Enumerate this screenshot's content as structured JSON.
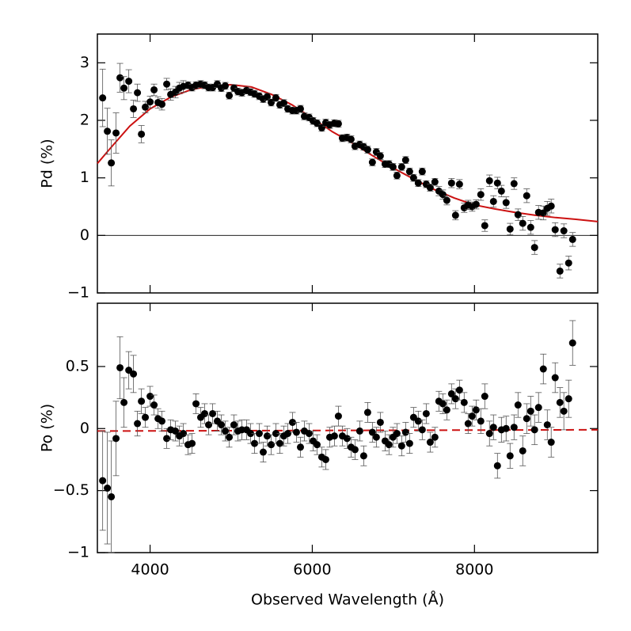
{
  "chart_data": [
    {
      "type": "scatter",
      "ylabel": "Pd (%)",
      "xlim": [
        3350,
        9520
      ],
      "ylim": [
        -1,
        3.5
      ],
      "xticks": [
        4000,
        6000,
        8000
      ],
      "yticks": [
        {
          "value": -1,
          "label": "−1"
        },
        0,
        1,
        2,
        3
      ],
      "hline": 0,
      "x": [
        3415,
        3473,
        3522,
        3580,
        3629,
        3678,
        3737,
        3795,
        3844,
        3893,
        3941,
        4000,
        4049,
        4098,
        4146,
        4205,
        4254,
        4312,
        4361,
        4410,
        4468,
        4517,
        4566,
        4624,
        4673,
        4722,
        4771,
        4829,
        4878,
        4927,
        4976,
        5034,
        5083,
        5132,
        5190,
        5239,
        5288,
        5346,
        5395,
        5444,
        5493,
        5551,
        5600,
        5649,
        5698,
        5756,
        5805,
        5854,
        5902,
        5961,
        6010,
        6059,
        6117,
        6166,
        6215,
        6273,
        6322,
        6371,
        6429,
        6478,
        6527,
        6585,
        6634,
        6683,
        6741,
        6790,
        6839,
        6898,
        6946,
        6995,
        7044,
        7102,
        7151,
        7200,
        7249,
        7307,
        7356,
        7405,
        7454,
        7512,
        7561,
        7610,
        7659,
        7717,
        7766,
        7815,
        7873,
        7922,
        7971,
        8020,
        8078,
        8127,
        8185,
        8234,
        8283,
        8332,
        8390,
        8439,
        8488,
        8537,
        8595,
        8644,
        8693,
        8741,
        8790,
        8849,
        8898,
        8946,
        8995,
        9054,
        9102,
        9161,
        9210
      ],
      "series": [
        {
          "color": "#000000",
          "values": [
            2.39,
            1.81,
            1.26,
            1.78,
            2.74,
            2.56,
            2.68,
            2.2,
            2.48,
            1.76,
            2.23,
            2.32,
            2.53,
            2.31,
            2.28,
            2.63,
            2.45,
            2.49,
            2.56,
            2.59,
            2.61,
            2.57,
            2.61,
            2.63,
            2.61,
            2.57,
            2.57,
            2.63,
            2.56,
            2.6,
            2.43,
            2.56,
            2.5,
            2.48,
            2.52,
            2.49,
            2.46,
            2.42,
            2.37,
            2.41,
            2.31,
            2.39,
            2.27,
            2.3,
            2.2,
            2.17,
            2.17,
            2.2,
            2.07,
            2.05,
            1.99,
            1.95,
            1.87,
            1.96,
            1.92,
            1.95,
            1.94,
            1.69,
            1.7,
            1.67,
            1.55,
            1.58,
            1.54,
            1.49,
            1.27,
            1.45,
            1.38,
            1.24,
            1.24,
            1.19,
            1.04,
            1.19,
            1.31,
            1.11,
            1.0,
            0.91,
            1.11,
            0.89,
            0.83,
            0.93,
            0.77,
            0.71,
            0.61,
            0.91,
            0.35,
            0.89,
            0.48,
            0.53,
            0.5,
            0.54,
            0.71,
            0.17,
            0.95,
            0.59,
            0.91,
            0.77,
            0.57,
            0.11,
            0.9,
            0.36,
            0.21,
            0.69,
            0.14,
            -0.21,
            0.4,
            0.39,
            0.47,
            0.51,
            0.1,
            -0.62,
            0.08,
            -0.48,
            -0.07
          ],
          "errors": [
            0.5,
            0.4,
            0.4,
            0.35,
            0.25,
            0.2,
            0.2,
            0.15,
            0.15,
            0.15,
            0.1,
            0.1,
            0.1,
            0.1,
            0.1,
            0.1,
            0.1,
            0.1,
            0.1,
            0.1,
            0.06,
            0.06,
            0.06,
            0.06,
            0.06,
            0.06,
            0.06,
            0.06,
            0.06,
            0.06,
            0.06,
            0.06,
            0.06,
            0.06,
            0.06,
            0.06,
            0.06,
            0.06,
            0.06,
            0.06,
            0.06,
            0.06,
            0.06,
            0.06,
            0.06,
            0.06,
            0.06,
            0.06,
            0.06,
            0.06,
            0.06,
            0.06,
            0.06,
            0.06,
            0.06,
            0.06,
            0.06,
            0.06,
            0.06,
            0.06,
            0.06,
            0.06,
            0.06,
            0.06,
            0.06,
            0.06,
            0.06,
            0.06,
            0.06,
            0.06,
            0.06,
            0.06,
            0.06,
            0.06,
            0.06,
            0.06,
            0.06,
            0.06,
            0.06,
            0.06,
            0.08,
            0.08,
            0.08,
            0.08,
            0.08,
            0.08,
            0.08,
            0.08,
            0.08,
            0.08,
            0.1,
            0.1,
            0.1,
            0.1,
            0.1,
            0.1,
            0.1,
            0.1,
            0.1,
            0.1,
            0.12,
            0.12,
            0.12,
            0.12,
            0.12,
            0.12,
            0.12,
            0.12,
            0.12,
            0.12,
            0.12,
            0.12,
            0.12
          ]
        }
      ],
      "fit": {
        "color": "#cc1111",
        "dashed": false,
        "x": [
          3350,
          3500,
          3750,
          4000,
          4250,
          4500,
          4750,
          5000,
          5250,
          5500,
          5750,
          6000,
          6250,
          6500,
          6750,
          7000,
          7250,
          7500,
          7750,
          8000,
          8250,
          8500,
          8750,
          9000,
          9250,
          9520
        ],
        "values": [
          1.25,
          1.5,
          1.9,
          2.2,
          2.4,
          2.53,
          2.6,
          2.62,
          2.58,
          2.45,
          2.27,
          2.04,
          1.8,
          1.6,
          1.38,
          1.17,
          0.98,
          0.8,
          0.65,
          0.53,
          0.46,
          0.4,
          0.35,
          0.31,
          0.28,
          0.24
        ]
      }
    },
    {
      "type": "scatter",
      "ylabel": "Po (%)",
      "xlabel": "Observed Wavelength (Å)",
      "xlim": [
        3350,
        9520
      ],
      "ylim": [
        -1,
        1.01
      ],
      "xticks": [
        4000,
        6000,
        8000
      ],
      "yticks": [
        {
          "value": -1,
          "label": "−1"
        },
        {
          "value": -0.5,
          "label": "−0.5"
        },
        0,
        0.5
      ],
      "x": [
        3415,
        3473,
        3522,
        3580,
        3629,
        3678,
        3737,
        3795,
        3844,
        3893,
        3941,
        4000,
        4049,
        4098,
        4146,
        4205,
        4254,
        4312,
        4361,
        4410,
        4468,
        4517,
        4566,
        4624,
        4673,
        4722,
        4771,
        4829,
        4878,
        4927,
        4976,
        5034,
        5083,
        5132,
        5190,
        5239,
        5288,
        5346,
        5395,
        5444,
        5493,
        5551,
        5600,
        5649,
        5698,
        5756,
        5805,
        5854,
        5902,
        5961,
        6010,
        6059,
        6117,
        6166,
        6215,
        6273,
        6322,
        6371,
        6429,
        6478,
        6527,
        6585,
        6634,
        6683,
        6741,
        6790,
        6839,
        6898,
        6946,
        6995,
        7044,
        7102,
        7151,
        7200,
        7249,
        7307,
        7356,
        7405,
        7454,
        7512,
        7561,
        7610,
        7659,
        7717,
        7766,
        7815,
        7873,
        7922,
        7971,
        8020,
        8078,
        8127,
        8185,
        8234,
        8283,
        8332,
        8390,
        8439,
        8488,
        8537,
        8595,
        8644,
        8693,
        8741,
        8790,
        8849,
        8898,
        8946,
        8995,
        9054,
        9102,
        9161,
        9210
      ],
      "series": [
        {
          "color": "#000000",
          "values": [
            -0.42,
            -0.48,
            -0.55,
            -0.08,
            0.49,
            0.21,
            0.47,
            0.44,
            0.04,
            0.22,
            0.09,
            0.26,
            0.19,
            0.08,
            0.06,
            -0.08,
            -0.01,
            -0.02,
            -0.06,
            -0.04,
            -0.13,
            -0.12,
            0.2,
            0.09,
            0.12,
            0.03,
            0.12,
            0.06,
            0.03,
            -0.02,
            -0.07,
            0.03,
            -0.02,
            -0.01,
            -0.01,
            -0.04,
            -0.12,
            -0.04,
            -0.19,
            -0.06,
            -0.13,
            -0.04,
            -0.12,
            -0.06,
            -0.04,
            0.05,
            -0.03,
            -0.15,
            -0.02,
            -0.04,
            -0.1,
            -0.13,
            -0.23,
            -0.25,
            -0.07,
            -0.06,
            0.1,
            -0.06,
            -0.08,
            -0.15,
            -0.17,
            -0.02,
            -0.22,
            0.13,
            -0.03,
            -0.07,
            0.05,
            -0.1,
            -0.13,
            -0.07,
            -0.04,
            -0.14,
            -0.03,
            -0.12,
            0.09,
            0.06,
            -0.01,
            0.12,
            -0.11,
            -0.07,
            0.22,
            0.2,
            0.15,
            0.28,
            0.24,
            0.31,
            0.21,
            0.04,
            0.1,
            0.15,
            0.06,
            0.26,
            -0.04,
            0.01,
            -0.3,
            -0.01,
            0,
            -0.22,
            0.01,
            0.19,
            -0.18,
            0.08,
            0.14,
            -0.01,
            0.17,
            0.48,
            0.03,
            -0.11,
            0.41,
            0.21,
            0.14,
            0.24,
            0.69
          ],
          "errors": [
            0.4,
            0.45,
            0.45,
            0.3,
            0.25,
            0.2,
            0.15,
            0.15,
            0.1,
            0.1,
            0.08,
            0.08,
            0.08,
            0.08,
            0.08,
            0.08,
            0.08,
            0.08,
            0.08,
            0.08,
            0.08,
            0.08,
            0.08,
            0.08,
            0.08,
            0.08,
            0.08,
            0.08,
            0.08,
            0.08,
            0.08,
            0.08,
            0.08,
            0.08,
            0.08,
            0.08,
            0.08,
            0.08,
            0.08,
            0.08,
            0.08,
            0.08,
            0.08,
            0.08,
            0.08,
            0.08,
            0.08,
            0.08,
            0.08,
            0.08,
            0.08,
            0.08,
            0.08,
            0.08,
            0.08,
            0.08,
            0.08,
            0.08,
            0.08,
            0.08,
            0.08,
            0.08,
            0.08,
            0.08,
            0.08,
            0.08,
            0.08,
            0.08,
            0.08,
            0.08,
            0.08,
            0.08,
            0.08,
            0.08,
            0.08,
            0.08,
            0.08,
            0.08,
            0.08,
            0.08,
            0.08,
            0.08,
            0.08,
            0.08,
            0.08,
            0.08,
            0.08,
            0.08,
            0.08,
            0.08,
            0.1,
            0.1,
            0.1,
            0.1,
            0.1,
            0.1,
            0.1,
            0.1,
            0.1,
            0.1,
            0.12,
            0.12,
            0.12,
            0.12,
            0.12,
            0.12,
            0.12,
            0.12,
            0.12,
            0.12,
            0.15,
            0.15,
            0.18
          ]
        }
      ],
      "fit": {
        "color": "#cc1111",
        "dashed": true,
        "x": [
          3350,
          9520
        ],
        "values": [
          -0.02,
          -0.01
        ]
      }
    }
  ]
}
